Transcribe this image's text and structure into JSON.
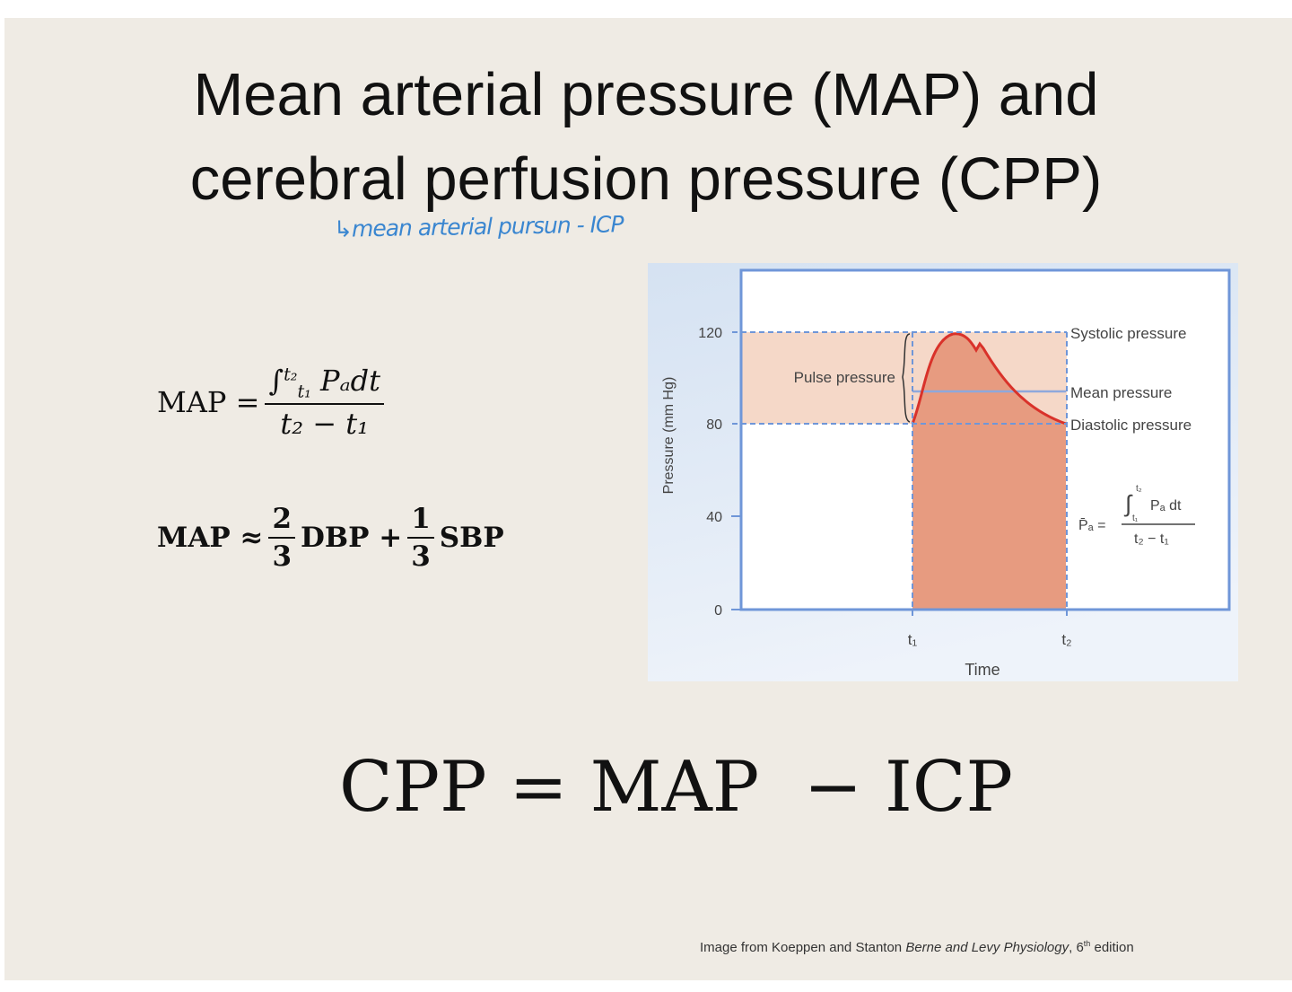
{
  "slide": {
    "title_line1": "Mean arterial pressure (MAP) and",
    "title_line2": "cerebral perfusion pressure (CPP)",
    "handwritten_note": "↳mean arterial pursun - ICP",
    "map_integral": {
      "lhs": "MAP =",
      "numerator": "∫",
      "upper": "t₂",
      "lower": "t₁",
      "integrand": "Pₐdt",
      "denominator": "t₂ − t₁"
    },
    "map_approx": {
      "lhs": "MAP ≈",
      "frac1_num": "2",
      "frac1_den": "3",
      "term1": "DBP +",
      "frac2_num": "1",
      "frac2_den": "3",
      "term2": "SBP"
    },
    "cpp_equation": "CPP = MAP  − ICP",
    "credit_prefix": "Image from Koeppen and Stanton ",
    "credit_book": "Berne and Levy Physiology",
    "credit_suffix": ", 6",
    "credit_sup": "th",
    "credit_end": " edition"
  },
  "figure": {
    "y_axis_label": "Pressure (mm Hg)",
    "x_axis_label": "Time",
    "y_ticks": [
      "0",
      "40",
      "80",
      "120"
    ],
    "x_ticks": [
      "t₁",
      "t₂"
    ],
    "labels": {
      "systolic": "Systolic pressure",
      "mean": "Mean pressure",
      "diastolic": "Diastolic pressure",
      "pulse": "Pulse pressure",
      "formula_lhs": "P̄ₐ =",
      "formula_num": "Pₐ dt",
      "formula_den": "t₂ − t₁",
      "formula_upper": "t₂",
      "formula_lower": "t₁"
    },
    "values": {
      "systolic": 120,
      "diastolic": 80,
      "mean": 93
    },
    "colors": {
      "curve": "#d9322a",
      "area": "#e79b80",
      "pulse_band": "#f5d8c8",
      "frame": "#6f96d8"
    }
  }
}
